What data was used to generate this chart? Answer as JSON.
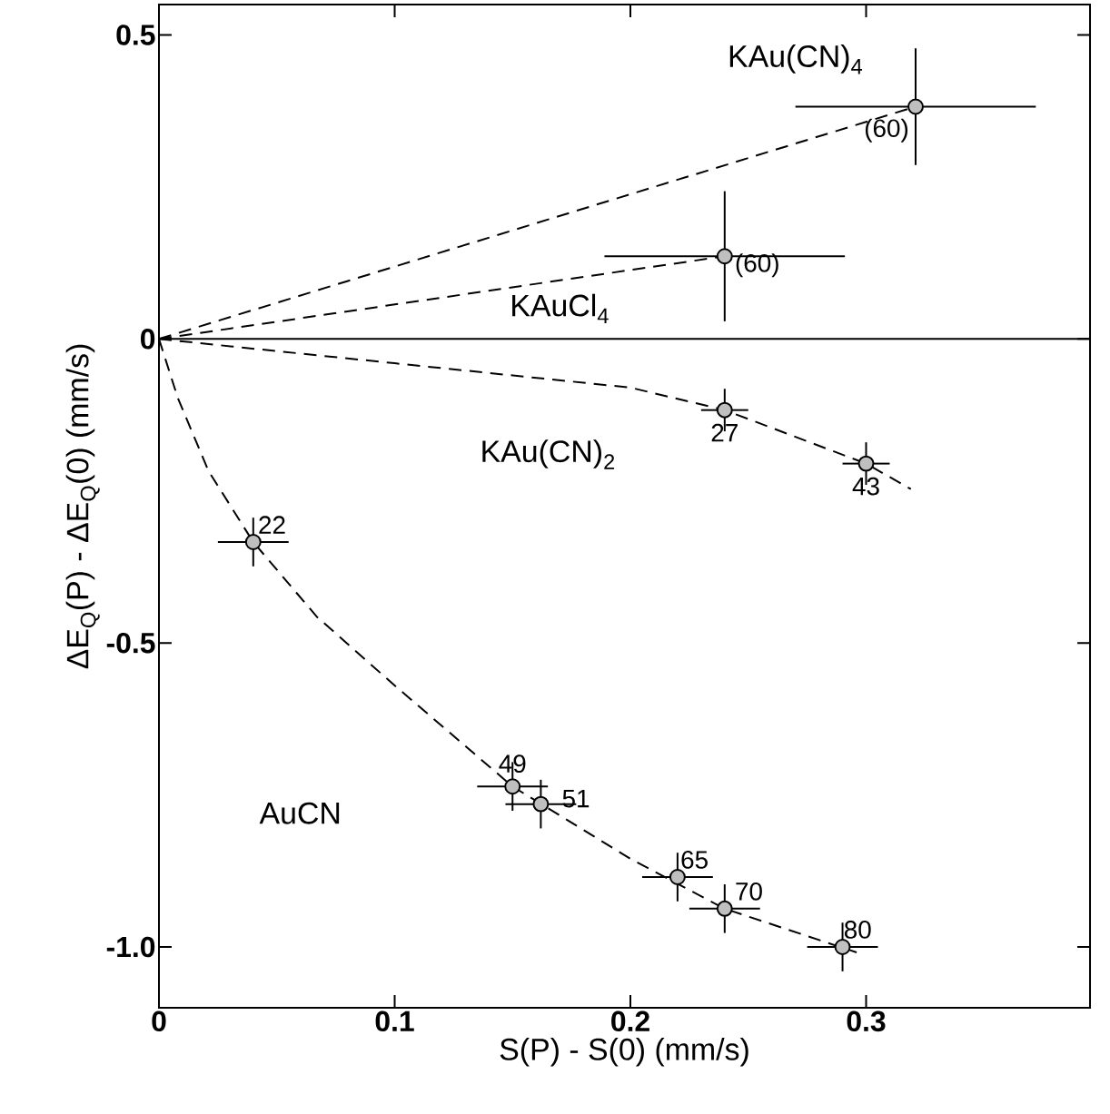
{
  "chart_data": {
    "type": "scatter",
    "xlabel": "S(P) - S(0) (mm/s)",
    "ylabel": "ΔE$_{Q}$(P) - ΔE$_{Q}$(0) (mm/s)",
    "xlim": [
      0,
      0.395
    ],
    "ylim": [
      -1.1,
      0.55
    ],
    "xticks": [
      0,
      0.1,
      0.2,
      0.3
    ],
    "yticks": [
      0.5,
      0,
      -0.5,
      {
        "value": -1,
        "label": "-1.0"
      }
    ],
    "grid": false,
    "ref_lines": [
      {
        "axis": "y",
        "value": 0,
        "color": "#000000",
        "line_style": "solid"
      }
    ],
    "series": [
      {
        "type": "line",
        "marker": "none",
        "color": "#000000",
        "line_style": "dashed",
        "x": [
          0,
          0.321
        ],
        "values": [
          0,
          0.382
        ]
      },
      {
        "type": "line",
        "marker": "none",
        "color": "#000000",
        "line_style": "dashed",
        "x": [
          0,
          0.24
        ],
        "values": [
          0,
          0.136
        ]
      },
      {
        "type": "line",
        "marker": "none",
        "color": "#000000",
        "line_style": "dashed",
        "x": [
          0,
          0.1,
          0.2,
          0.24,
          0.3,
          0.319
        ],
        "values": [
          0,
          -0.04,
          -0.08,
          -0.117,
          -0.205,
          -0.247
        ]
      },
      {
        "type": "line",
        "marker": "none",
        "color": "#000000",
        "line_style": "dashed",
        "x": [
          0,
          0.008,
          0.021,
          0.04,
          0.067,
          0.1,
          0.15,
          0.2,
          0.24,
          0.296
        ],
        "values": [
          0,
          -0.097,
          -0.217,
          -0.334,
          -0.457,
          -0.57,
          -0.736,
          -0.855,
          -0.937,
          -1.009
        ]
      },
      {
        "marker": "circle",
        "color": "#000000",
        "x": [
          0.321
        ],
        "values": [
          0.382
        ],
        "errors": [
          0.096
        ],
        "xerrors": [
          0.051
        ]
      },
      {
        "marker": "circle",
        "color": "#000000",
        "x": [
          0.24
        ],
        "values": [
          0.136
        ],
        "errors": [
          0.107
        ],
        "xerrors": [
          0.051
        ]
      },
      {
        "marker": "circle",
        "color": "#000000",
        "x": [
          0.24,
          0.3
        ],
        "values": [
          -0.117,
          -0.205
        ],
        "errors": [
          0.035,
          0.035
        ],
        "xerrors": [
          0.01,
          0.01
        ]
      },
      {
        "marker": "circle",
        "color": "#000000",
        "x": [
          0.04,
          0.15,
          0.162,
          0.22,
          0.24,
          0.29
        ],
        "values": [
          -0.334,
          -0.736,
          -0.765,
          -0.885,
          -0.937,
          -1.0
        ],
        "errors": [
          0.04,
          0.04,
          0.04,
          0.04,
          0.04,
          0.04
        ],
        "xerrors": [
          0.015,
          0.015,
          0.015,
          0.015,
          0.015,
          0.015
        ]
      }
    ],
    "annotations": [
      "KAu(CN)$_{4}$",
      "KAuCl$_{4}$",
      "KAu(CN)$_{2}$",
      "AuCN",
      {
        "text": "(60)",
        "x": 0.321,
        "y": 0.382
      },
      {
        "text": "(60)",
        "x": 0.24,
        "y": 0.136
      },
      {
        "text": "27",
        "x": 0.24,
        "y": -0.117
      },
      {
        "text": "43",
        "x": 0.3,
        "y": -0.205
      },
      {
        "text": "22",
        "x": 0.04,
        "y": -0.334
      },
      {
        "text": "49",
        "x": 0.15,
        "y": -0.736
      },
      {
        "text": "51",
        "x": 0.162,
        "y": -0.765
      },
      {
        "text": "65",
        "x": 0.22,
        "y": -0.885
      },
      {
        "text": "70",
        "x": 0.24,
        "y": -0.937
      },
      {
        "text": "80",
        "x": 0.29,
        "y": -1.0
      }
    ]
  }
}
